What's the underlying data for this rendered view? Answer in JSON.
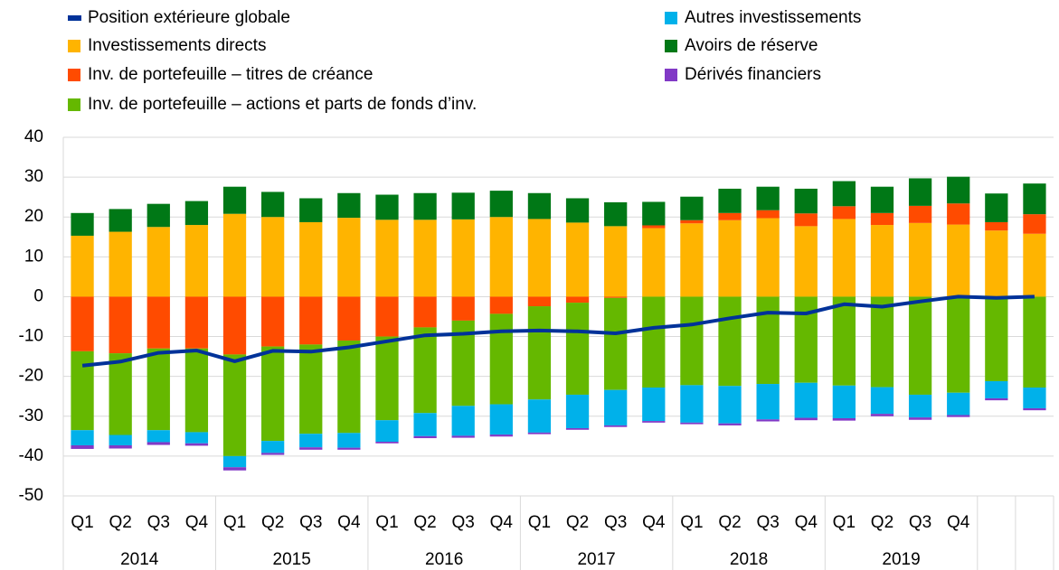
{
  "chart_data": {
    "type": "stacked_bar_line",
    "categories": [
      "Q1",
      "Q2",
      "Q3",
      "Q4",
      "Q1",
      "Q2",
      "Q3",
      "Q4",
      "Q1",
      "Q2",
      "Q3",
      "Q4",
      "Q1",
      "Q2",
      "Q3",
      "Q4",
      "Q1",
      "Q2",
      "Q3",
      "Q4",
      "Q1",
      "Q2",
      "Q3",
      "Q4",
      null,
      null
    ],
    "groups": [
      {
        "label": "2014",
        "span": 4
      },
      {
        "label": "2015",
        "span": 4
      },
      {
        "label": "2016",
        "span": 4
      },
      {
        "label": "2017",
        "span": 4
      },
      {
        "label": "2018",
        "span": 4
      },
      {
        "label": "2019",
        "span": 4
      }
    ],
    "series": [
      {
        "name": "Investissements directs",
        "color": "#ffb400",
        "values": [
          15.3,
          16.3,
          17.5,
          18,
          20.8,
          20,
          18.7,
          19.8,
          19.3,
          19.3,
          19.4,
          20,
          19.5,
          18.6,
          17.7,
          17.2,
          18.4,
          19.2,
          19.7,
          17.7,
          19.5,
          18,
          18.5,
          18.1,
          16.6,
          15.8
        ]
      },
      {
        "name": "Inv. de portefeuille – titres de créance",
        "color": "#ff4b00",
        "values": [
          -13.7,
          -14.2,
          -13,
          -13,
          -14.5,
          -12.5,
          -12,
          -11,
          -10,
          -7.7,
          -6,
          -4.3,
          -2.4,
          -1.5,
          -0.3,
          0.7,
          0.8,
          1.8,
          2,
          3.2,
          3.2,
          3,
          4.3,
          5.3,
          2.1,
          4.9
        ]
      },
      {
        "name": "Inv. de portefeuille – actions et parts de fonds d’inv.",
        "color": "#65b800",
        "values": [
          -19.8,
          -20.5,
          -20.5,
          -21,
          -25.5,
          -23.7,
          -22.4,
          -23.2,
          -21,
          -21.5,
          -21.4,
          -22.7,
          -23.4,
          -23.1,
          -23.1,
          -22.8,
          -22.2,
          -22.4,
          -21.9,
          -21.6,
          -22.3,
          -22.7,
          -24.6,
          -24.1,
          -21.2,
          -22.8
        ]
      },
      {
        "name": "Autres investissements",
        "color": "#00b1ea",
        "values": [
          -3.8,
          -2.6,
          -3,
          -2.8,
          -2.8,
          -3,
          -3.4,
          -3.7,
          -5.4,
          -5.8,
          -7.5,
          -7.6,
          -8.3,
          -8.4,
          -8.9,
          -8.4,
          -9.4,
          -9.4,
          -8.9,
          -8.8,
          -8.2,
          -6.7,
          -5.7,
          -5.6,
          -4.3,
          -5.2
        ]
      },
      {
        "name": "Avoirs de réserve",
        "color": "#007816",
        "values": [
          5.7,
          5.7,
          5.8,
          6,
          6.8,
          6.3,
          6,
          6.2,
          6.3,
          6.7,
          6.7,
          6.6,
          6.5,
          6.1,
          6,
          5.9,
          5.9,
          6.1,
          5.9,
          6.2,
          6.3,
          6.6,
          6.9,
          6.7,
          7.2,
          7.7
        ]
      },
      {
        "name": "Dérivés financiers",
        "color": "#8139c6",
        "values": [
          -0.9,
          -0.8,
          -0.7,
          -0.6,
          -0.8,
          -0.5,
          -0.6,
          -0.5,
          -0.4,
          -0.5,
          -0.5,
          -0.5,
          -0.4,
          -0.4,
          -0.4,
          -0.4,
          -0.4,
          -0.5,
          -0.5,
          -0.6,
          -0.6,
          -0.6,
          -0.6,
          -0.5,
          -0.5,
          -0.5
        ]
      }
    ],
    "line": {
      "name": "Position extérieure globale",
      "color": "#003299",
      "values": [
        -17.3,
        -16.3,
        -14.1,
        -13.5,
        -16.2,
        -13.6,
        -13.8,
        -12.7,
        -11.2,
        -9.7,
        -9.3,
        -8.7,
        -8.5,
        -8.7,
        -9.2,
        -7.8,
        -7,
        -5.4,
        -4,
        -4.2,
        -1.9,
        -2.5,
        -1.2,
        0,
        -0.3,
        0
      ]
    },
    "ylim": [
      -50,
      40
    ],
    "yticks": [
      -50,
      -40,
      -30,
      -20,
      -10,
      0,
      10,
      20,
      30,
      40
    ],
    "grid": true
  }
}
